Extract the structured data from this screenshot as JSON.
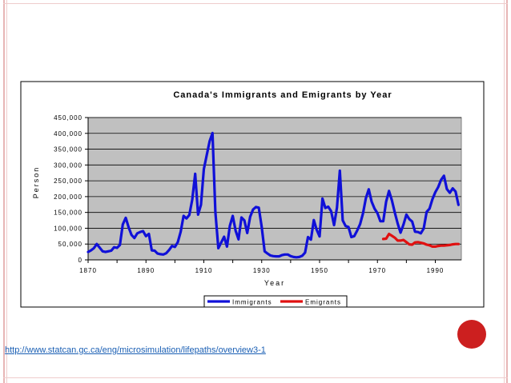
{
  "colors": {
    "immigrants": "#1010d8",
    "emigrants": "#e01010",
    "plot_bg": "#c0c0c0",
    "link": "#1a5fb4",
    "accent_dot": "#cc1f1f"
  },
  "source_link": "http://www.statcan.gc.ca/eng/microsimulation/lifepaths/overview3-1",
  "chart_data": {
    "type": "line",
    "title": "Canada's Immigrants and Emigrants by Year",
    "xlabel": "Year",
    "ylabel": "Person",
    "xlim": [
      1870,
      1999
    ],
    "ylim": [
      0,
      450000
    ],
    "x_ticks": [
      "1870",
      "1890",
      "1910",
      "1930",
      "1950",
      "1970",
      "1990"
    ],
    "y_ticks": [
      "0",
      "50,000",
      "100,000",
      "150,000",
      "200,000",
      "250,000",
      "300,000",
      "350,000",
      "400,000",
      "450,000"
    ],
    "grid": true,
    "legend": "bottom-right",
    "series": [
      {
        "name": "Immigrants",
        "x": [
          1870,
          1871,
          1872,
          1873,
          1874,
          1875,
          1876,
          1877,
          1878,
          1879,
          1880,
          1881,
          1882,
          1883,
          1884,
          1885,
          1886,
          1887,
          1888,
          1889,
          1890,
          1891,
          1892,
          1893,
          1894,
          1895,
          1896,
          1897,
          1898,
          1899,
          1900,
          1901,
          1902,
          1903,
          1904,
          1905,
          1906,
          1907,
          1908,
          1909,
          1910,
          1911,
          1912,
          1913,
          1914,
          1915,
          1916,
          1917,
          1918,
          1919,
          1920,
          1921,
          1922,
          1923,
          1924,
          1925,
          1926,
          1927,
          1928,
          1929,
          1930,
          1931,
          1932,
          1933,
          1934,
          1935,
          1936,
          1937,
          1938,
          1939,
          1940,
          1941,
          1942,
          1943,
          1944,
          1945,
          1946,
          1947,
          1948,
          1949,
          1950,
          1951,
          1952,
          1953,
          1954,
          1955,
          1956,
          1957,
          1958,
          1959,
          1960,
          1961,
          1962,
          1963,
          1964,
          1965,
          1966,
          1967,
          1968,
          1969,
          1970,
          1971,
          1972,
          1973,
          1974,
          1975,
          1976,
          1977,
          1978,
          1979,
          1980,
          1981,
          1982,
          1983,
          1984,
          1985,
          1986,
          1987,
          1988,
          1989,
          1990,
          1991,
          1992,
          1993,
          1994,
          1995,
          1996,
          1997,
          1998
        ],
        "values": [
          25000,
          30000,
          37000,
          50000,
          39000,
          27000,
          25000,
          27000,
          29000,
          40000,
          38000,
          47000,
          112000,
          133000,
          103000,
          79000,
          69000,
          84000,
          88000,
          91000,
          75000,
          82000,
          30000,
          29000,
          20000,
          18000,
          17000,
          21000,
          31000,
          44000,
          41000,
          56000,
          89000,
          139000,
          131000,
          142000,
          190000,
          272000,
          143000,
          174000,
          287000,
          331000,
          375000,
          401000,
          151000,
          37000,
          55000,
          73000,
          42000,
          108000,
          139000,
          92000,
          65000,
          134000,
          125000,
          85000,
          136000,
          159000,
          167000,
          165000,
          105000,
          27000,
          20000,
          14000,
          12000,
          11000,
          11000,
          15000,
          17000,
          17000,
          12000,
          9000,
          8000,
          9000,
          13000,
          23000,
          72000,
          64000,
          126000,
          95000,
          74000,
          194000,
          164000,
          168000,
          154000,
          110000,
          165000,
          282000,
          125000,
          107000,
          104000,
          72000,
          75000,
          93000,
          113000,
          147000,
          195000,
          223000,
          184000,
          162000,
          148000,
          122000,
          122000,
          184000,
          218000,
          188000,
          150000,
          115000,
          86000,
          112000,
          143000,
          129000,
          121000,
          89000,
          88000,
          84000,
          99000,
          152000,
          162000,
          192000,
          214000,
          230000,
          253000,
          266000,
          224000,
          212000,
          226000,
          216000,
          174000
        ]
      },
      {
        "name": "Emigrants",
        "x": [
          1972,
          1973,
          1974,
          1975,
          1976,
          1977,
          1978,
          1979,
          1980,
          1981,
          1982,
          1983,
          1984,
          1985,
          1986,
          1987,
          1988,
          1989,
          1990,
          1991,
          1992,
          1993,
          1994,
          1995,
          1996,
          1997,
          1998
        ],
        "values": [
          66000,
          67000,
          82000,
          76000,
          70000,
          61000,
          61000,
          63000,
          56000,
          49000,
          48000,
          55000,
          56000,
          54000,
          52000,
          48000,
          46000,
          42000,
          42000,
          44000,
          45000,
          45000,
          46000,
          47000,
          49000,
          50000,
          50000
        ]
      }
    ]
  }
}
